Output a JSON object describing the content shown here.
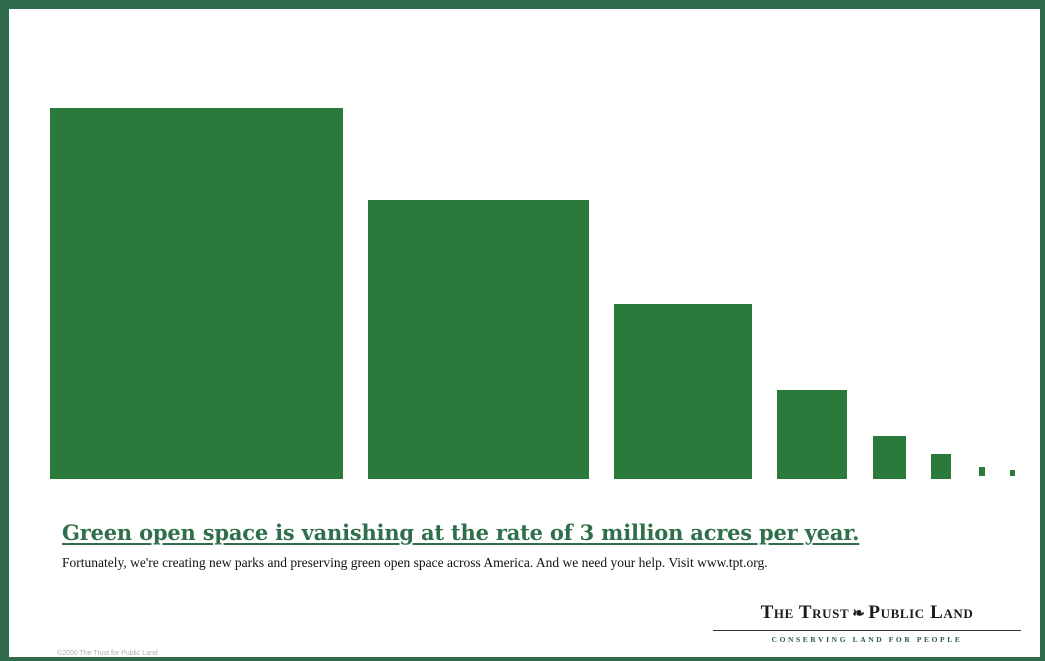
{
  "headline": "Green open space is vanishing at the rate of 3 million acres per year.",
  "subline": "Fortunately, we're creating new parks and preserving green open space across America.  And we need your help.  Visit www.tpt.org.",
  "copyright": "©2000 The Trust for Public Land",
  "logo": {
    "name_part1": "The Trust",
    "name_part2": "Public Land",
    "leaf_icon": "leaf-icon",
    "tagline": "CONSERVING LAND FOR PEOPLE"
  },
  "colors": {
    "frame": "#2f6a4a",
    "blocks": "#2a7a3b",
    "headline": "#2f6f4a"
  },
  "graphic": {
    "description_type": "shrinking green squares",
    "block_count": 8
  }
}
